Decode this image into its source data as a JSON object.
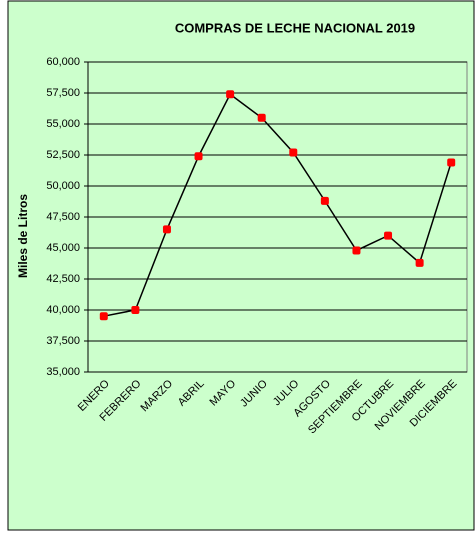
{
  "chart_data": {
    "type": "line",
    "title": "COMPRAS DE LECHE NACIONAL 2019",
    "y_label": "Miles de Litros",
    "categories": [
      "ENERO",
      "FEBRERO",
      "MARZO",
      "ABRIL",
      "MAYO",
      "JUNIO",
      "JULIO",
      "AGOSTO",
      "SEPTIEMBRE",
      "OCTUBRE",
      "NOVIEMBRE",
      "DICIEMBRE"
    ],
    "values": [
      39500,
      40000,
      46500,
      52400,
      57400,
      55500,
      52700,
      48800,
      44800,
      46000,
      43800,
      51900
    ],
    "color": "#000000",
    "marker_color": "#ff0000",
    "ylim": [
      35000,
      60000
    ],
    "yticks": [
      {
        "value": 35000,
        "label": "35,000"
      },
      {
        "value": 37500,
        "label": "37,500"
      },
      {
        "value": 40000,
        "label": "40,000"
      },
      {
        "value": 42500,
        "label": "42,500"
      },
      {
        "value": 45000,
        "label": "45,000"
      },
      {
        "value": 47500,
        "label": "47,500"
      },
      {
        "value": 50000,
        "label": "50,000"
      },
      {
        "value": 52500,
        "label": "52,500"
      },
      {
        "value": 55000,
        "label": "55,000"
      },
      {
        "value": 57500,
        "label": "57,500"
      },
      {
        "value": 60000,
        "label": "60,000"
      }
    ],
    "grid": true
  }
}
